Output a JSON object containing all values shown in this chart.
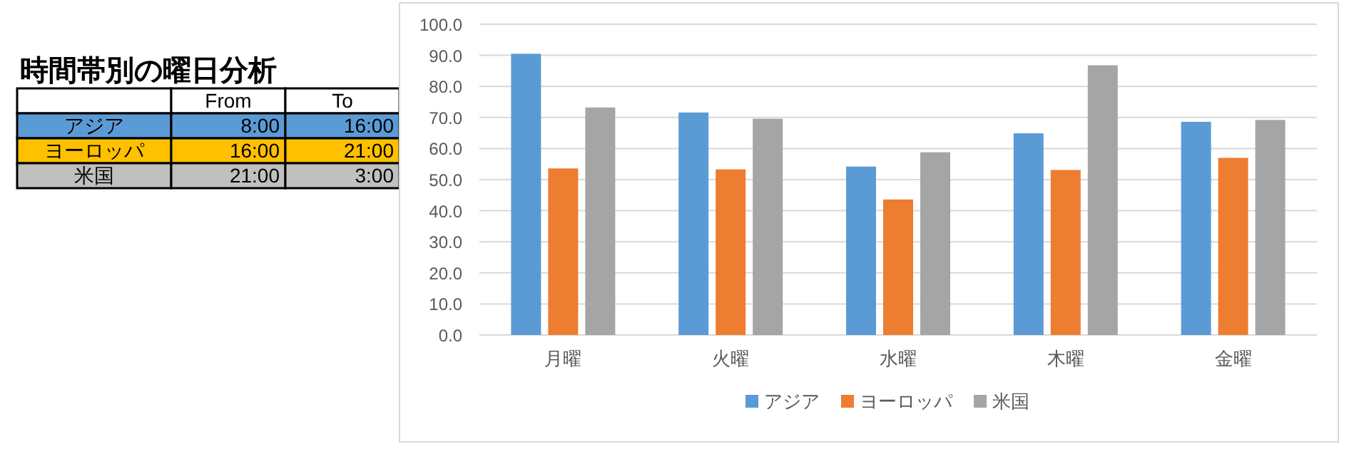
{
  "chart_data": [
    {
      "type": "other",
      "title": "時間帯別の曜日分析",
      "categories": [
        "アジア",
        "ヨーロッパ",
        "米国"
      ],
      "colors": [
        "#5b9bd5",
        "#ffc000",
        "#c0c0c0"
      ],
      "annotations": [
        "From",
        "To",
        "8:00",
        "16:00",
        "16:00",
        "21:00",
        "21:00",
        "3:00"
      ]
    },
    {
      "type": "bar",
      "categories": [
        "月曜",
        "火曜",
        "水曜",
        "木曜",
        "金曜"
      ],
      "series": [
        {
          "name": "アジア",
          "color": "#5b9bd5",
          "values": [
            90.5,
            71.6,
            54.2,
            64.9,
            68.6
          ]
        },
        {
          "name": "ヨーロッパ",
          "color": "#ed7d31",
          "values": [
            53.6,
            53.3,
            43.6,
            53.1,
            57.0
          ]
        },
        {
          "name": "米国",
          "color": "#a5a5a5",
          "values": [
            73.2,
            69.6,
            58.8,
            86.8,
            69.2
          ]
        }
      ],
      "ylim": [
        0,
        100
      ],
      "yticks": [
        {
          "value": 0,
          "label": "0.0"
        },
        {
          "value": 10,
          "label": "10.0"
        },
        {
          "value": 20,
          "label": "20.0"
        },
        {
          "value": 30,
          "label": "30.0"
        },
        {
          "value": 40,
          "label": "40.0"
        },
        {
          "value": 50,
          "label": "50.0"
        },
        {
          "value": 60,
          "label": "60.0"
        },
        {
          "value": 70,
          "label": "70.0"
        },
        {
          "value": 80,
          "label": "80.0"
        },
        {
          "value": 90,
          "label": "90.0"
        },
        {
          "value": 100,
          "label": "100.0"
        }
      ],
      "grid": "y",
      "legend": "bottom"
    }
  ]
}
